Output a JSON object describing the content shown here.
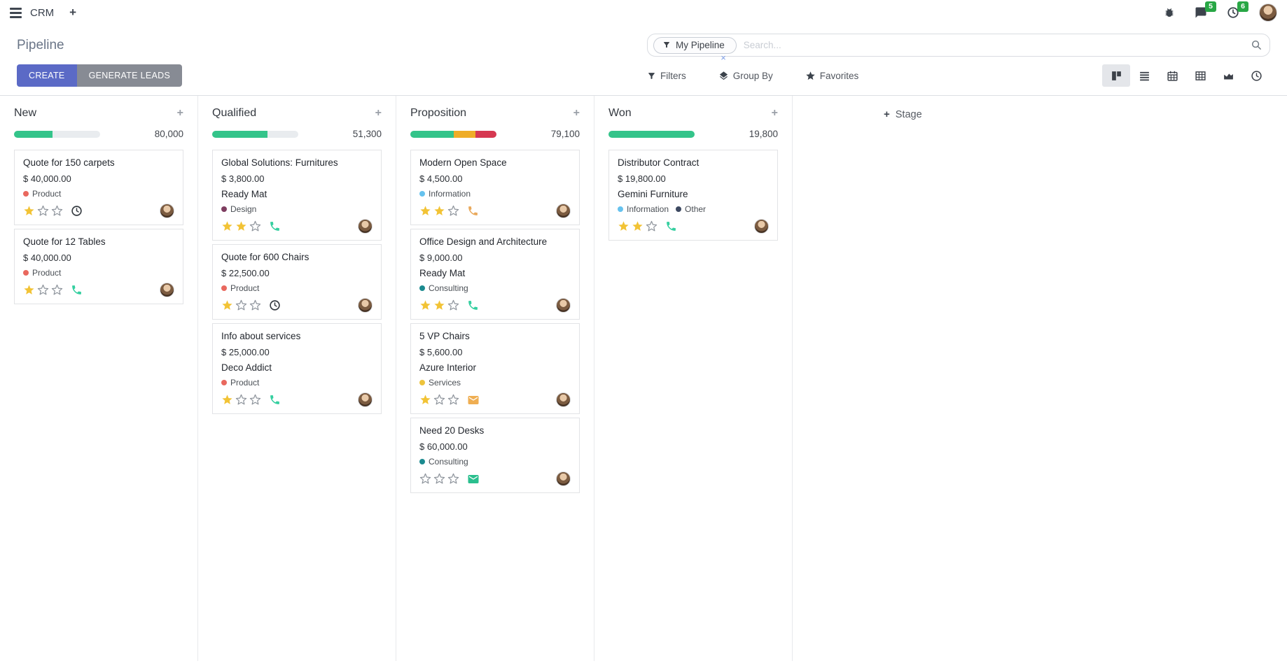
{
  "topbar": {
    "app_name": "CRM",
    "messages_badge": "5",
    "activities_badge": "6"
  },
  "control_panel": {
    "title": "Pipeline",
    "create_label": "CREATE",
    "generate_leads_label": "GENERATE LEADS",
    "filters_label": "Filters",
    "group_by_label": "Group By",
    "favorites_label": "Favorites",
    "search": {
      "facet_label": "My Pipeline",
      "facet_remove": "×",
      "placeholder": "Search..."
    }
  },
  "kanban": {
    "add_stage_label": "Stage",
    "colors": {
      "progress_green": "#34c48a",
      "progress_yellow": "#efad27",
      "progress_red": "#d63851",
      "star_filled": "#f2c335",
      "star_empty": "#8d939b"
    },
    "columns": [
      {
        "name": "New",
        "total": "80,000",
        "progress": [
          {
            "name": "success",
            "color": "#34c48a",
            "pct": 45
          }
        ],
        "cards": [
          {
            "title": "Quote for 150 carpets",
            "amount": "$ 40,000.00",
            "partner": "",
            "tags": [
              {
                "label": "Product",
                "color": "#e9685e"
              }
            ],
            "stars": 1,
            "activity": "clock",
            "activity_color": "#343a40"
          },
          {
            "title": "Quote for 12 Tables",
            "amount": "$ 40,000.00",
            "partner": "",
            "tags": [
              {
                "label": "Product",
                "color": "#e9685e"
              }
            ],
            "stars": 1,
            "activity": "phone",
            "activity_color": "#35cfa0"
          }
        ]
      },
      {
        "name": "Qualified",
        "total": "51,300",
        "progress": [
          {
            "name": "success",
            "color": "#34c48a",
            "pct": 64
          }
        ],
        "cards": [
          {
            "title": "Global Solutions: Furnitures",
            "amount": "$ 3,800.00",
            "partner": "Ready Mat",
            "tags": [
              {
                "label": "Design",
                "color": "#7e3d60"
              }
            ],
            "stars": 2,
            "activity": "phone",
            "activity_color": "#35cfa0"
          },
          {
            "title": "Quote for 600 Chairs",
            "amount": "$ 22,500.00",
            "partner": "",
            "tags": [
              {
                "label": "Product",
                "color": "#e9685e"
              }
            ],
            "stars": 1,
            "activity": "clock",
            "activity_color": "#343a40"
          },
          {
            "title": "Info about services",
            "amount": "$ 25,000.00",
            "partner": "Deco Addict",
            "tags": [
              {
                "label": "Product",
                "color": "#e9685e"
              }
            ],
            "stars": 1,
            "activity": "phone",
            "activity_color": "#35cfa0"
          }
        ]
      },
      {
        "name": "Proposition",
        "total": "79,100",
        "progress": [
          {
            "name": "success",
            "color": "#34c48a",
            "pct": 50
          },
          {
            "name": "warning",
            "color": "#efad27",
            "pct": 26
          },
          {
            "name": "danger",
            "color": "#d63851",
            "pct": 24
          }
        ],
        "cards": [
          {
            "title": "Modern Open Space",
            "amount": "$ 4,500.00",
            "partner": "",
            "tags": [
              {
                "label": "Information",
                "color": "#66c2ee"
              }
            ],
            "stars": 2,
            "activity": "phone",
            "activity_color": "#e9a95c"
          },
          {
            "title": "Office Design and Architecture",
            "amount": "$ 9,000.00",
            "partner": "Ready Mat",
            "tags": [
              {
                "label": "Consulting",
                "color": "#1b8a8f"
              }
            ],
            "stars": 2,
            "activity": "phone",
            "activity_color": "#35cfa0"
          },
          {
            "title": "5 VP Chairs",
            "amount": "$ 5,600.00",
            "partner": "Azure Interior",
            "tags": [
              {
                "label": "Services",
                "color": "#edc33c"
              }
            ],
            "stars": 1,
            "activity": "envelope",
            "activity_color": "#efae52"
          },
          {
            "title": "Need 20 Desks",
            "amount": "$ 60,000.00",
            "partner": "",
            "tags": [
              {
                "label": "Consulting",
                "color": "#1b8a8f"
              }
            ],
            "stars": 0,
            "activity": "envelope",
            "activity_color": "#2abf8e"
          }
        ]
      },
      {
        "name": "Won",
        "total": "19,800",
        "progress": [
          {
            "name": "success",
            "color": "#34c48a",
            "pct": 100
          }
        ],
        "cards": [
          {
            "title": "Distributor Contract",
            "amount": "$ 19,800.00",
            "partner": "Gemini Furniture",
            "tags": [
              {
                "label": "Information",
                "color": "#66c2ee"
              },
              {
                "label": "Other",
                "color": "#3d4961"
              }
            ],
            "stars": 2,
            "activity": "phone",
            "activity_color": "#35cfa0"
          }
        ]
      }
    ]
  }
}
